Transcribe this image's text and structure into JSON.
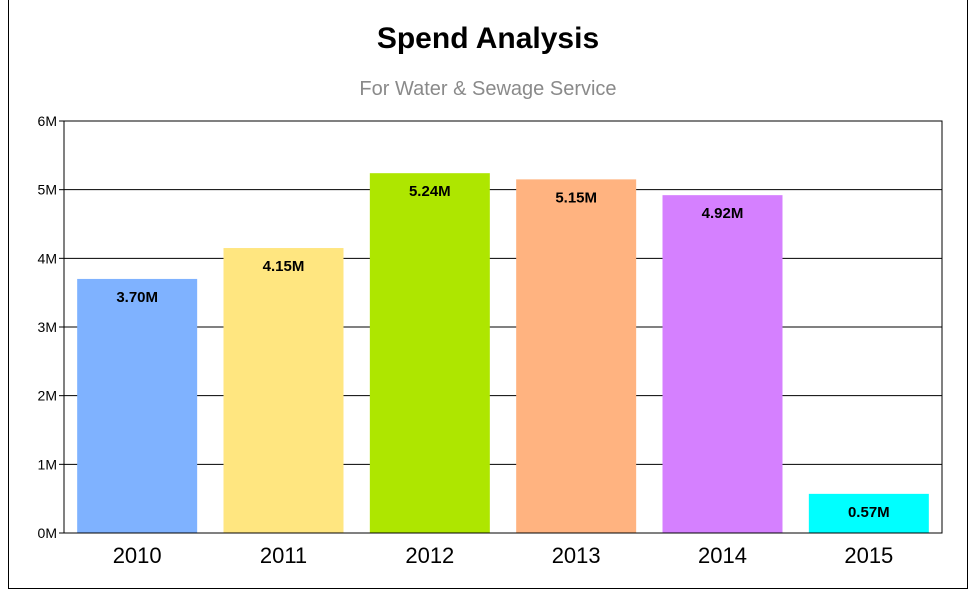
{
  "chart_data": {
    "type": "bar",
    "title": "Spend Analysis",
    "subtitle": "For Water & Sewage Service",
    "categories": [
      "2010",
      "2011",
      "2012",
      "2013",
      "2014",
      "2015"
    ],
    "values": [
      3.7,
      4.15,
      5.24,
      5.15,
      4.92,
      0.57
    ],
    "data_labels": [
      "3.70M",
      "4.15M",
      "5.24M",
      "5.15M",
      "4.92M",
      "0.57M"
    ],
    "colors": [
      "#7fb2ff",
      "#ffe680",
      "#aee600",
      "#ffb380",
      "#d580ff",
      "#00ffff"
    ],
    "ylim": [
      0,
      6
    ],
    "yticks": [
      0,
      1,
      2,
      3,
      4,
      5,
      6
    ],
    "ytick_labels": [
      "0M",
      "1M",
      "2M",
      "3M",
      "4M",
      "5M",
      "6M"
    ],
    "grid": true,
    "legend": "none",
    "xlabel": "",
    "ylabel": ""
  }
}
